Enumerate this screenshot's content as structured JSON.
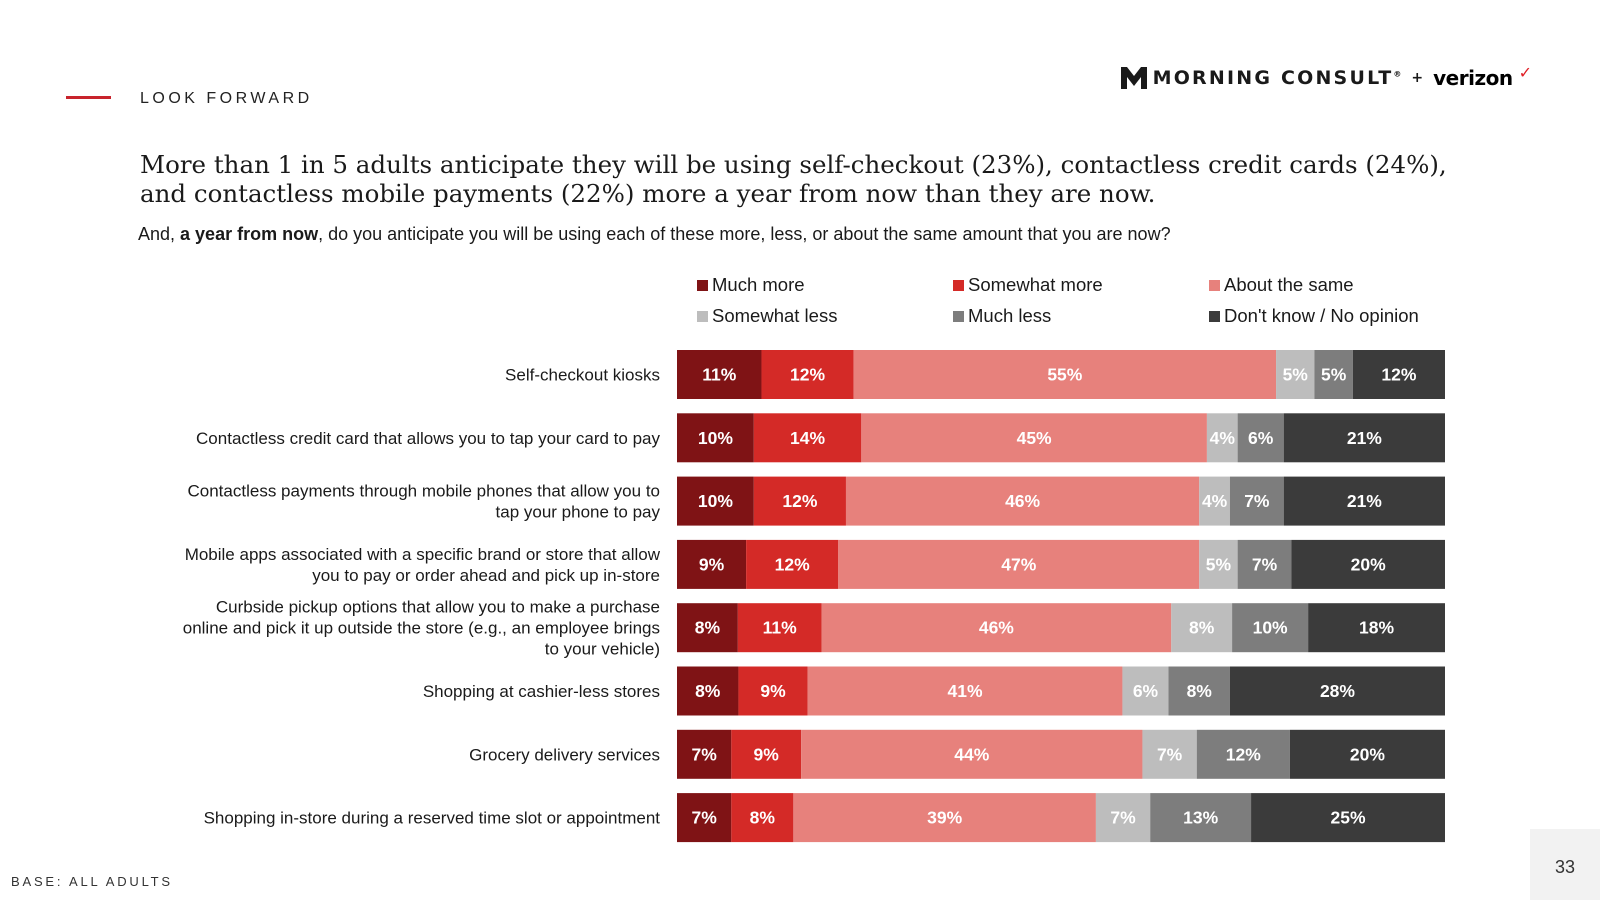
{
  "header": {
    "section_label": "LOOK FORWARD",
    "brand_name": "MORNING CONSULT",
    "brand_reg": "®",
    "brand_plus": "+",
    "brand_partner": "verizon",
    "brand_check": "✓"
  },
  "headline": "More than 1 in 5 adults anticipate they will be using self-checkout (23%), contactless credit cards (24%), and contactless mobile payments (22%) more a year from now than they are now.",
  "question": {
    "prefix": "And, ",
    "bold": "a year from now",
    "suffix": ", do you anticipate you will be using each of these more, less, or about the same amount that you are now?"
  },
  "footer": {
    "base": "BASE: ALL ADULTS",
    "page_number": "33"
  },
  "colors": {
    "accent": "#c8232c",
    "much_more": "#7f1315",
    "somewhat_more": "#d42a27",
    "about_same": "#e7817c",
    "somewhat_less": "#bdbdbd",
    "much_less": "#7d7d7d",
    "dont_know": "#3b3b3b"
  },
  "chart_data": {
    "type": "bar",
    "orientation": "horizontal",
    "stacked": true,
    "xlim": [
      0,
      100
    ],
    "unit": "%",
    "legend_position": "top",
    "series": [
      {
        "name": "Much more",
        "color": "#7f1315",
        "values": [
          11,
          10,
          10,
          9,
          8,
          8,
          7,
          7
        ]
      },
      {
        "name": "Somewhat more",
        "color": "#d42a27",
        "values": [
          12,
          14,
          12,
          12,
          11,
          9,
          9,
          8
        ]
      },
      {
        "name": "About the same",
        "color": "#e7817c",
        "values": [
          55,
          45,
          46,
          47,
          46,
          41,
          44,
          39
        ]
      },
      {
        "name": "Somewhat less",
        "color": "#bdbdbd",
        "values": [
          5,
          4,
          4,
          5,
          8,
          6,
          7,
          7
        ]
      },
      {
        "name": "Much less",
        "color": "#7d7d7d",
        "values": [
          5,
          6,
          7,
          7,
          10,
          8,
          12,
          13
        ]
      },
      {
        "name": "Don't know / No opinion",
        "color": "#3b3b3b",
        "values": [
          12,
          21,
          21,
          20,
          18,
          28,
          20,
          25
        ]
      }
    ],
    "categories": [
      [
        "Self-checkout kiosks"
      ],
      [
        "Contactless credit card that allows you to tap your card to pay"
      ],
      [
        "Contactless payments through mobile phones that allow you to",
        "tap your phone to pay"
      ],
      [
        "Mobile apps associated with a specific brand or store that allow",
        "you to pay or order ahead and pick up in-store"
      ],
      [
        "Curbside pickup options that allow you to make a purchase",
        "online and pick it up outside the store (e.g., an employee brings",
        "to your vehicle)"
      ],
      [
        "Shopping at cashier-less stores"
      ],
      [
        "Grocery delivery services"
      ],
      [
        "Shopping in-store during a reserved time slot or appointment"
      ]
    ]
  }
}
